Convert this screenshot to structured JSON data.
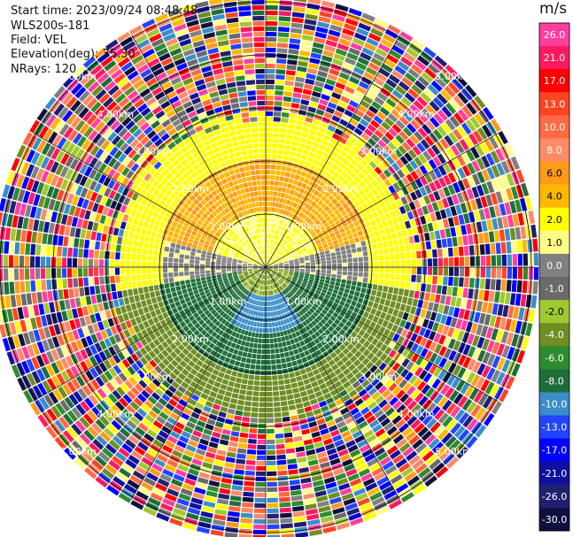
{
  "header": {
    "start_time": "Start time: 2023/09/24 08:48:48",
    "instrument": "WLS200s-181",
    "field": "Field: VEL",
    "elevation": "Elevation(deg): 35.30",
    "nrays": "NRays: 120"
  },
  "colorbar": {
    "unit": "m/s",
    "ticks": [
      "26.0",
      "21.0",
      "17.0",
      "13.0",
      "10.0",
      "8.0",
      "6.0",
      "4.0",
      "2.0",
      "1.0",
      "0.0",
      "-1.0",
      "-2.0",
      "-4.0",
      "-6.0",
      "-8.0",
      "-10.0",
      "-13.0",
      "-17.0",
      "-21.0",
      "-26.0",
      "-30.0"
    ],
    "colors": [
      "#ff3ea0",
      "#ff1a60",
      "#ff0000",
      "#ff4422",
      "#ff6a44",
      "#ff8a66",
      "#ff9a1a",
      "#ffb800",
      "#ffff00",
      "#ffff88",
      "#808080",
      "#6a6a6a",
      "#a0c830",
      "#6e8e22",
      "#2e8b2e",
      "#1e6e3a",
      "#3a8ec8",
      "#2244ff",
      "#0000ff",
      "#1010a0",
      "#202070",
      "#101040"
    ]
  },
  "chart_data": {
    "type": "heatmap",
    "projection": "polar PPI",
    "field": "VEL",
    "units": "m/s",
    "n_rays": 120,
    "elevation_deg": 35.3,
    "range_rings_km": [
      1.0,
      2.0,
      3.0,
      4.0,
      5.0
    ],
    "ring_labels": {
      "r1": "1.00km",
      "r2": "2.00km",
      "r3": "3.00km",
      "r4": "4.00km",
      "r5": "5.00km"
    },
    "spoke_angles_deg": [
      0,
      30,
      60,
      90,
      120,
      150,
      180,
      210,
      240,
      270,
      300,
      330
    ],
    "approximate_structure": {
      "north_0_to_1km": "yellow (1 to 2 m/s)",
      "north_1_to_2km": "orange (4 to 8 m/s)",
      "north_2_to_2.8km": "yellow (2 m/s)",
      "south_0_to_2.5km": "green (-2 to -8 m/s)",
      "east_west_0_to_2km": "gray (0 m/s)",
      "beyond_3km": "noise (full color range)"
    }
  }
}
